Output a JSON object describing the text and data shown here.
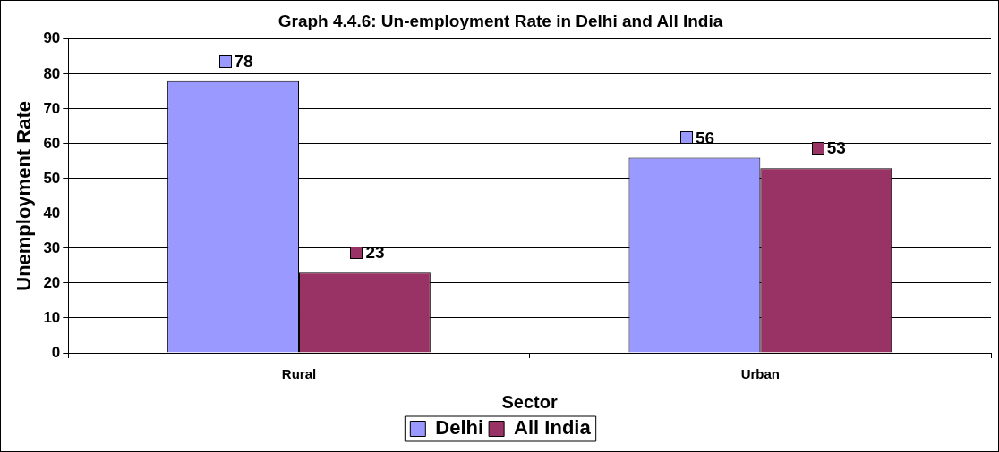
{
  "chart_data": {
    "type": "bar",
    "title": "Graph 4.4.6: Un-employment Rate in Delhi and All India",
    "xlabel": "Sector",
    "ylabel": "Unemployment Rate",
    "categories": [
      "Rural",
      "Urban"
    ],
    "series": [
      {
        "name": "Delhi",
        "color": "#9999ff",
        "values": [
          78,
          56
        ]
      },
      {
        "name": "All India",
        "color": "#993366",
        "values": [
          23,
          53
        ]
      }
    ],
    "ylim": [
      0,
      90
    ],
    "yticks": [
      0,
      10,
      20,
      30,
      40,
      50,
      60,
      70,
      80,
      90
    ],
    "grid": "y",
    "legend": "bottom",
    "data_labels": true
  }
}
